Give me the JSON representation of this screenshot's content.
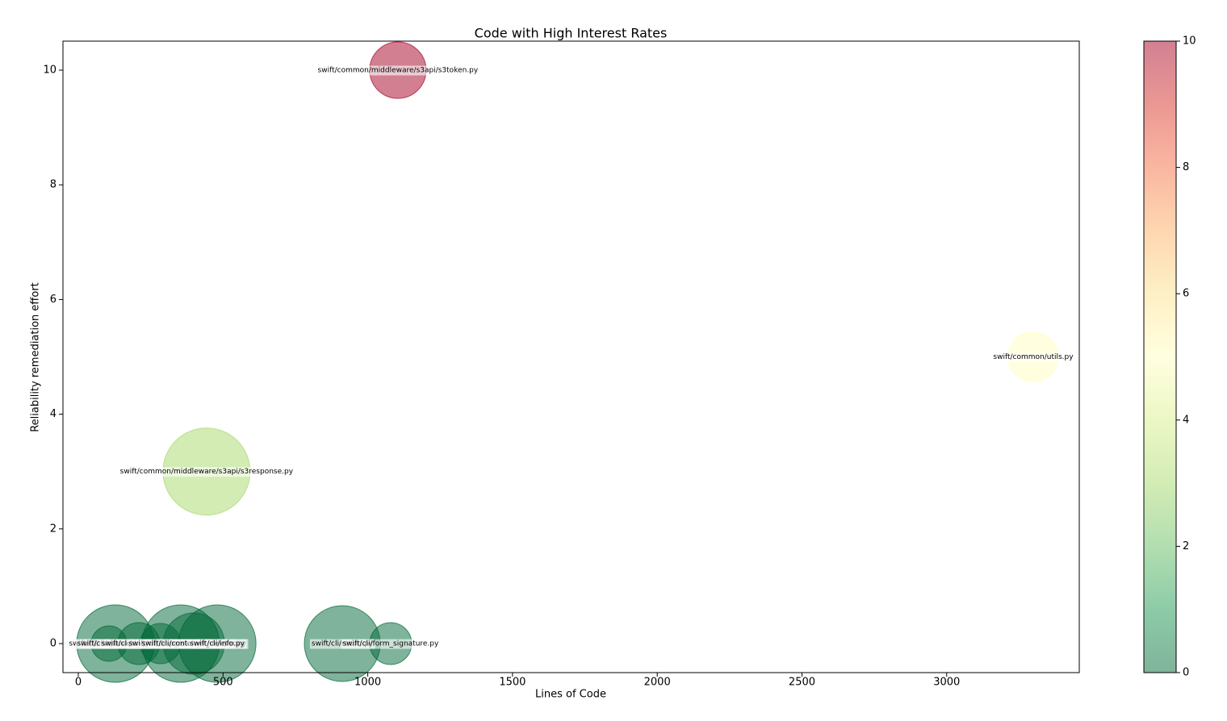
{
  "chart_data": {
    "type": "bubble",
    "title": "Code with High Interest Rates",
    "x_label": "Lines of Code",
    "y_label": "Reliability remediation effort",
    "series": [
      {
        "names": [
          "swift/common/middleware/s3api/s3token.py",
          "swift/common/utils.py",
          "swift/common/middleware/s3api/s3response.py",
          "swift/cli/relinker.py",
          "swift/cli/ringbuilder.py",
          "swift/cli/manage_shard_ranges.py",
          "swift/cli/ring_builder_analyzer.py",
          "swift/cli/dispersion_report.py",
          "swift/cli/container_deleter.py",
          "swift/cli/info.py",
          "swift/cli/recon.py",
          "swift/cli/form_signature.py"
        ],
        "x": [
          1104,
          3299,
          443,
          128,
          106,
          209,
          284,
          354,
          399,
          480,
          912,
          1079
        ],
        "values": [
          10,
          5,
          3,
          0,
          0,
          0,
          0,
          0,
          0,
          0,
          0,
          0
        ],
        "sizes": [
          1225,
          961,
          2916,
          2304,
          484,
          676,
          625,
          2304,
          1444,
          2304,
          2209,
          676
        ],
        "colors": [
          10,
          5,
          3,
          0,
          0,
          0,
          0,
          0,
          0,
          0,
          0,
          0
        ]
      }
    ],
    "colormap": "RdYlGn_r",
    "clim": [
      0,
      10
    ],
    "colorbar_ticks": [
      0,
      2,
      4,
      6,
      8,
      10
    ],
    "xlim": [
      -53,
      3458
    ],
    "xticks": [
      0,
      500,
      1000,
      1500,
      2000,
      2500,
      3000
    ],
    "ylim": [
      -0.506,
      10.506
    ],
    "yticks": [
      0,
      2,
      4,
      6,
      8,
      10
    ],
    "grid": false
  }
}
